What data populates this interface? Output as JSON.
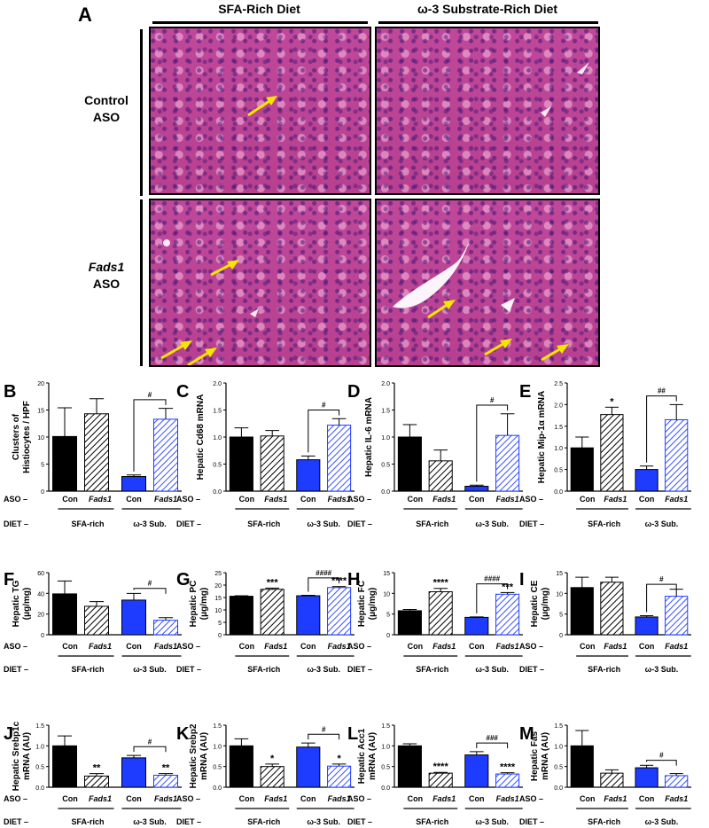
{
  "histology": {
    "panel_letter": "A",
    "col_titles": [
      "SFA-Rich Diet",
      "ω-3 Substrate-Rich Diet"
    ],
    "row_labels": [
      {
        "line1": "Control",
        "line2": "ASO"
      },
      {
        "line1": "Fads1",
        "line2": "ASO"
      }
    ]
  },
  "colors": {
    "con_black": "#000000",
    "blue": "#1e3cff",
    "hatch_blue": "#5060ff",
    "arrow": "#f5e600"
  },
  "shared": {
    "aso": "ASO –",
    "diet": "DIET –",
    "con": "Con",
    "fads1": "Fads1",
    "sfa": "SFA-rich",
    "w3": "ω-3 Sub."
  },
  "chart_data": [
    {
      "letter": "B",
      "type": "bar",
      "ylabel": [
        "Clusters of",
        "Histiocytes / HPF"
      ],
      "ylim": [
        0,
        20
      ],
      "ticks": [
        "0",
        "5",
        "10",
        "15",
        "20"
      ],
      "values": [
        10.1,
        14.3,
        2.7,
        13.3
      ],
      "errors": [
        5.3,
        2.8,
        0.3,
        2.0
      ],
      "stars": [
        "",
        "",
        "",
        ""
      ],
      "brackets": [
        {
          "label": "#"
        }
      ]
    },
    {
      "letter": "C",
      "type": "bar",
      "ylabel": [
        "Hepatic Cd68 mRNA"
      ],
      "ylim": [
        0,
        2.0
      ],
      "ticks": [
        "0.0",
        "0.5",
        "1.0",
        "1.5",
        "2.0"
      ],
      "values": [
        1.0,
        1.02,
        0.58,
        1.22
      ],
      "errors": [
        0.17,
        0.1,
        0.07,
        0.12
      ],
      "stars": [
        "",
        "",
        "",
        ""
      ],
      "brackets": [
        {
          "label": "#"
        }
      ]
    },
    {
      "letter": "D",
      "type": "bar",
      "ylabel": [
        "Hepatic IL-6 mRNA"
      ],
      "ylim": [
        0,
        2.0
      ],
      "ticks": [
        "0.0",
        "0.5",
        "1.0",
        "1.5",
        "2.0"
      ],
      "values": [
        1.0,
        0.56,
        0.09,
        1.03
      ],
      "errors": [
        0.23,
        0.2,
        0.02,
        0.4
      ],
      "stars": [
        "",
        "",
        "",
        ""
      ],
      "brackets": [
        {
          "label": "#"
        }
      ]
    },
    {
      "letter": "E",
      "type": "bar",
      "ylabel": [
        "Hepatic Mip-1α mRNA"
      ],
      "ylim": [
        0,
        2.5
      ],
      "ticks": [
        "0.0",
        "0.5",
        "1.0",
        "1.5",
        "2.0",
        "2.5"
      ],
      "values": [
        1.0,
        1.77,
        0.5,
        1.65
      ],
      "errors": [
        0.25,
        0.17,
        0.08,
        0.35
      ],
      "stars": [
        "",
        "*",
        "",
        ""
      ],
      "brackets": [
        {
          "label": "##"
        }
      ]
    },
    {
      "letter": "F",
      "type": "bar",
      "ylabel": [
        "Hepatic TG",
        "(μg/mg)"
      ],
      "ylim": [
        0,
        60
      ],
      "ticks": [
        "0",
        "20",
        "40",
        "60"
      ],
      "values": [
        39.5,
        27.5,
        33.5,
        14.0
      ],
      "errors": [
        12.5,
        4.5,
        6.5,
        2.5
      ],
      "stars": [
        "",
        "",
        "",
        ""
      ],
      "brackets": [
        {
          "label": "#"
        }
      ]
    },
    {
      "letter": "G",
      "type": "bar",
      "ylabel": [
        "Hepatic PC",
        "(μg/mg)"
      ],
      "ylim": [
        0,
        25
      ],
      "ticks": [
        "0",
        "5",
        "10",
        "15",
        "20",
        "25"
      ],
      "values": [
        15.5,
        18.3,
        15.7,
        19.0
      ],
      "errors": [
        0.2,
        0.5,
        0.2,
        0.4
      ],
      "stars": [
        "",
        "***",
        "",
        "****"
      ],
      "brackets": [
        {
          "label": "####"
        }
      ]
    },
    {
      "letter": "H",
      "type": "bar",
      "ylabel": [
        "Hepatic FC",
        "(μg/mg)"
      ],
      "ylim": [
        0,
        15
      ],
      "ticks": [
        "0",
        "5",
        "10",
        "15"
      ],
      "values": [
        5.8,
        10.4,
        4.2,
        9.8
      ],
      "errors": [
        0.3,
        0.8,
        0.1,
        0.4
      ],
      "stars": [
        "",
        "****",
        "",
        "***"
      ],
      "brackets": [
        {
          "label": "####"
        }
      ]
    },
    {
      "letter": "I",
      "type": "bar",
      "ylabel": [
        "Hepatic CE",
        "(μg/mg)"
      ],
      "ylim": [
        0,
        15
      ],
      "ticks": [
        "0",
        "5",
        "10",
        "15"
      ],
      "values": [
        11.4,
        12.7,
        4.3,
        9.3
      ],
      "errors": [
        2.5,
        1.2,
        0.3,
        1.7
      ],
      "stars": [
        "",
        "",
        "",
        ""
      ],
      "brackets": [
        {
          "label": "#"
        }
      ]
    },
    {
      "letter": "J",
      "type": "bar",
      "ylabel": [
        "Hepatic Srebp1c",
        "mRNA (AU)"
      ],
      "ylim": [
        0,
        1.5
      ],
      "ticks": [
        "0.0",
        "0.5",
        "1.0",
        "1.5"
      ],
      "values": [
        1.0,
        0.27,
        0.71,
        0.29
      ],
      "errors": [
        0.24,
        0.06,
        0.06,
        0.04
      ],
      "stars": [
        "",
        "**",
        "",
        "**"
      ],
      "brackets": [
        {
          "label": "#"
        }
      ]
    },
    {
      "letter": "K",
      "type": "bar",
      "ylabel": [
        "Hepatic Srebp2",
        "mRNA (AU)"
      ],
      "ylim": [
        0,
        1.5
      ],
      "ticks": [
        "0.0",
        "0.5",
        "1.0",
        "1.5"
      ],
      "values": [
        1.0,
        0.5,
        0.97,
        0.51
      ],
      "errors": [
        0.17,
        0.06,
        0.1,
        0.05
      ],
      "stars": [
        "",
        "*",
        "",
        "*"
      ],
      "brackets": [
        {
          "label": "#"
        }
      ]
    },
    {
      "letter": "L",
      "type": "bar",
      "ylabel": [
        "Hepatic Acc1",
        "mRNA (AU)"
      ],
      "ylim": [
        0,
        1.5
      ],
      "ticks": [
        "0.0",
        "0.5",
        "1.0",
        "1.5"
      ],
      "values": [
        1.0,
        0.34,
        0.78,
        0.32
      ],
      "errors": [
        0.05,
        0.02,
        0.08,
        0.03
      ],
      "stars": [
        "",
        "****",
        "",
        "****"
      ],
      "brackets": [
        {
          "label": "###"
        }
      ]
    },
    {
      "letter": "M",
      "type": "bar",
      "ylabel": [
        "Hepatic Fas",
        "mRNA (AU)"
      ],
      "ylim": [
        0,
        1.5
      ],
      "ticks": [
        "0.0",
        "0.5",
        "1.0",
        "1.5"
      ],
      "values": [
        1.0,
        0.34,
        0.47,
        0.28
      ],
      "errors": [
        0.37,
        0.08,
        0.06,
        0.05
      ],
      "stars": [
        "",
        "",
        "",
        ""
      ],
      "brackets": [
        {
          "label": "#"
        }
      ]
    }
  ]
}
